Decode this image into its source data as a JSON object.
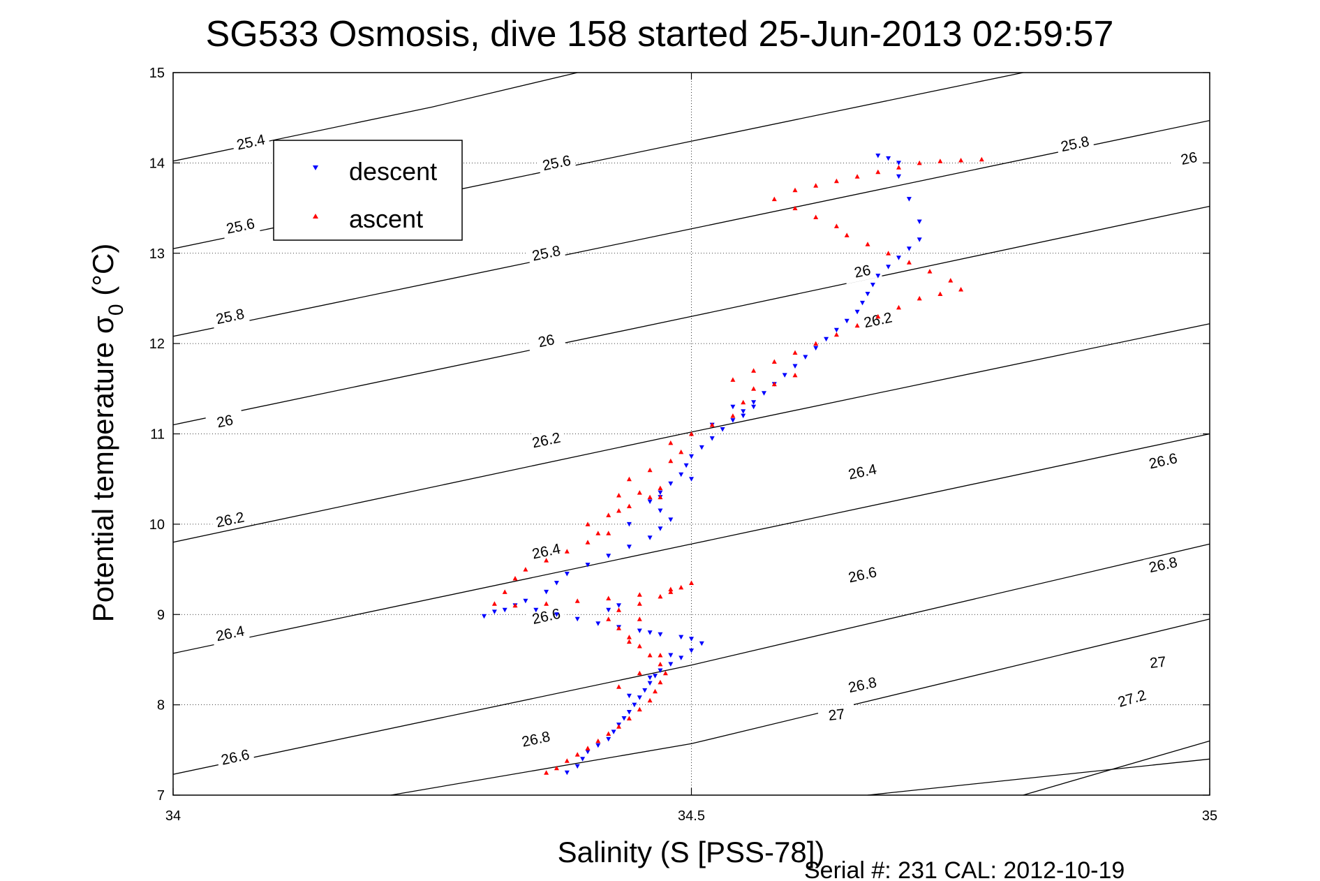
{
  "chart_data": {
    "type": "scatter",
    "title": "SG533 Osmosis, dive 158 started 25-Jun-2013 02:59:57",
    "xlabel": "Salinity (S [PSS-78])",
    "ylabel_main": "Potential temperature σ",
    "ylabel_sub": "0",
    "ylabel_unit": " (°C)",
    "xlim": [
      34,
      35
    ],
    "ylim": [
      7,
      15
    ],
    "x_ticks": [
      34,
      34.5,
      35
    ],
    "x_tick_labels": [
      "34",
      "34.5",
      "35"
    ],
    "y_ticks": [
      7,
      8,
      9,
      10,
      11,
      12,
      13,
      14,
      15
    ],
    "y_tick_labels": [
      "7",
      "8",
      "9",
      "10",
      "11",
      "12",
      "13",
      "14",
      "15"
    ],
    "grid": true,
    "legend_position": "top-left",
    "footer": "Serial #: 231  CAL: 2012-10-19",
    "contour_levels": [
      25.4,
      25.6,
      25.8,
      26,
      26.2,
      26.4,
      26.6,
      26.8,
      27,
      27.2
    ],
    "contours": [
      {
        "level": 25.4,
        "label": "25.4",
        "points": [
          [
            34,
            14.02
          ],
          [
            34.25,
            14.62
          ],
          [
            34.39,
            15.0
          ]
        ],
        "label_at": [
          [
            34.075,
            14.23
          ]
        ]
      },
      {
        "level": 25.6,
        "label": "25.6",
        "points": [
          [
            34,
            13.05
          ],
          [
            34.5,
            14.24
          ],
          [
            34.82,
            15.0
          ]
        ],
        "label_at": [
          [
            34.065,
            13.3
          ],
          [
            34.37,
            14.0
          ]
        ]
      },
      {
        "level": 25.8,
        "label": "25.8",
        "points": [
          [
            34,
            12.08
          ],
          [
            34.5,
            13.27
          ],
          [
            35,
            14.47
          ]
        ],
        "label_at": [
          [
            34.055,
            12.3
          ],
          [
            34.36,
            13.0
          ],
          [
            34.87,
            14.21
          ]
        ]
      },
      {
        "level": 26,
        "label": "26",
        "points": [
          [
            34,
            11.1
          ],
          [
            34.5,
            12.3
          ],
          [
            35,
            13.52
          ]
        ],
        "label_at": [
          [
            34.05,
            11.14
          ],
          [
            34.36,
            12.03
          ],
          [
            34.665,
            12.8
          ],
          [
            34.98,
            14.05
          ]
        ]
      },
      {
        "level": 26.2,
        "label": "26.2",
        "points": [
          [
            34,
            9.8
          ],
          [
            34.5,
            11.02
          ],
          [
            35,
            12.22
          ]
        ],
        "label_at": [
          [
            34.055,
            10.05
          ],
          [
            34.36,
            10.93
          ],
          [
            34.68,
            12.26
          ]
        ]
      },
      {
        "level": 26.4,
        "label": "26.4",
        "points": [
          [
            34,
            8.57
          ],
          [
            34.5,
            9.78
          ],
          [
            35,
            11.0
          ]
        ],
        "label_at": [
          [
            34.055,
            8.79
          ],
          [
            34.36,
            9.7
          ],
          [
            34.665,
            10.58
          ]
        ]
      },
      {
        "level": 26.6,
        "label": "26.6",
        "points": [
          [
            34,
            7.23
          ],
          [
            34.5,
            8.44
          ],
          [
            35,
            9.78
          ]
        ],
        "label_at": [
          [
            34.06,
            7.42
          ],
          [
            34.36,
            8.98
          ],
          [
            34.665,
            9.44
          ],
          [
            34.955,
            10.7
          ]
        ]
      },
      {
        "level": 26.8,
        "label": "26.8",
        "points": [
          [
            34.21,
            7.0
          ],
          [
            34.5,
            7.57
          ],
          [
            35,
            8.95
          ]
        ],
        "label_at": [
          [
            34.35,
            7.62
          ],
          [
            34.665,
            8.22
          ],
          [
            34.955,
            9.55
          ]
        ]
      },
      {
        "level": 27,
        "label": "27",
        "points": [
          [
            34.67,
            7.0
          ],
          [
            35,
            7.4
          ]
        ],
        "label_at": [
          [
            34.64,
            7.89
          ],
          [
            34.95,
            8.47
          ]
        ]
      },
      {
        "level": 27.2,
        "label": "27.2",
        "points": [
          [
            34.82,
            7.0
          ],
          [
            35,
            7.6
          ]
        ],
        "label_at": [
          [
            34.925,
            8.07
          ]
        ]
      }
    ],
    "series": [
      {
        "name": "descent",
        "color": "#0000ff",
        "marker": "triangle-down",
        "points": [
          [
            34.38,
            7.25
          ],
          [
            34.39,
            7.32
          ],
          [
            34.395,
            7.4
          ],
          [
            34.4,
            7.48
          ],
          [
            34.41,
            7.55
          ],
          [
            34.42,
            7.62
          ],
          [
            34.425,
            7.7
          ],
          [
            34.43,
            7.78
          ],
          [
            34.435,
            7.85
          ],
          [
            34.44,
            7.92
          ],
          [
            34.445,
            8.0
          ],
          [
            34.45,
            8.08
          ],
          [
            34.455,
            8.16
          ],
          [
            34.46,
            8.24
          ],
          [
            34.465,
            8.32
          ],
          [
            34.47,
            8.38
          ],
          [
            34.48,
            8.45
          ],
          [
            34.49,
            8.52
          ],
          [
            34.5,
            8.6
          ],
          [
            34.51,
            8.68
          ],
          [
            34.5,
            8.73
          ],
          [
            34.49,
            8.75
          ],
          [
            34.47,
            8.78
          ],
          [
            34.45,
            8.82
          ],
          [
            34.43,
            8.86
          ],
          [
            34.41,
            8.9
          ],
          [
            34.39,
            8.95
          ],
          [
            34.37,
            9.0
          ],
          [
            34.35,
            9.05
          ],
          [
            34.33,
            9.1
          ],
          [
            34.31,
            9.03
          ],
          [
            34.3,
            8.98
          ],
          [
            34.32,
            9.05
          ],
          [
            34.34,
            9.15
          ],
          [
            34.36,
            9.25
          ],
          [
            34.37,
            9.35
          ],
          [
            34.38,
            9.45
          ],
          [
            34.4,
            9.55
          ],
          [
            34.42,
            9.65
          ],
          [
            34.44,
            9.75
          ],
          [
            34.46,
            9.85
          ],
          [
            34.47,
            9.95
          ],
          [
            34.48,
            10.05
          ],
          [
            34.47,
            10.15
          ],
          [
            34.46,
            10.25
          ],
          [
            34.47,
            10.35
          ],
          [
            34.48,
            10.45
          ],
          [
            34.49,
            10.55
          ],
          [
            34.495,
            10.65
          ],
          [
            34.5,
            10.75
          ],
          [
            34.51,
            10.85
          ],
          [
            34.52,
            10.95
          ],
          [
            34.53,
            11.05
          ],
          [
            34.54,
            11.15
          ],
          [
            34.55,
            11.25
          ],
          [
            34.56,
            11.35
          ],
          [
            34.57,
            11.45
          ],
          [
            34.58,
            11.55
          ],
          [
            34.59,
            11.65
          ],
          [
            34.6,
            11.75
          ],
          [
            34.61,
            11.85
          ],
          [
            34.62,
            11.95
          ],
          [
            34.63,
            12.05
          ],
          [
            34.64,
            12.15
          ],
          [
            34.65,
            12.25
          ],
          [
            34.66,
            12.35
          ],
          [
            34.665,
            12.45
          ],
          [
            34.67,
            12.55
          ],
          [
            34.675,
            12.65
          ],
          [
            34.68,
            12.75
          ],
          [
            34.69,
            12.85
          ],
          [
            34.7,
            12.95
          ],
          [
            34.71,
            13.05
          ],
          [
            34.72,
            13.15
          ],
          [
            34.72,
            13.35
          ],
          [
            34.71,
            13.6
          ],
          [
            34.7,
            13.85
          ],
          [
            34.7,
            14.0
          ],
          [
            34.69,
            14.05
          ],
          [
            34.68,
            14.08
          ],
          [
            34.56,
            11.3
          ],
          [
            34.55,
            11.2
          ],
          [
            34.54,
            11.3
          ],
          [
            34.52,
            11.1
          ],
          [
            34.5,
            10.5
          ],
          [
            34.47,
            10.3
          ],
          [
            34.44,
            10.0
          ],
          [
            34.43,
            9.1
          ],
          [
            34.42,
            9.05
          ],
          [
            34.46,
            8.8
          ],
          [
            34.48,
            8.55
          ],
          [
            34.46,
            8.3
          ],
          [
            34.44,
            8.1
          ]
        ]
      },
      {
        "name": "ascent",
        "color": "#ff0000",
        "marker": "triangle-up",
        "points": [
          [
            34.36,
            7.25
          ],
          [
            34.37,
            7.3
          ],
          [
            34.38,
            7.38
          ],
          [
            34.39,
            7.45
          ],
          [
            34.4,
            7.52
          ],
          [
            34.41,
            7.6
          ],
          [
            34.42,
            7.68
          ],
          [
            34.43,
            7.76
          ],
          [
            34.44,
            7.85
          ],
          [
            34.45,
            7.95
          ],
          [
            34.46,
            8.05
          ],
          [
            34.465,
            8.15
          ],
          [
            34.47,
            8.25
          ],
          [
            34.475,
            8.35
          ],
          [
            34.47,
            8.45
          ],
          [
            34.46,
            8.55
          ],
          [
            34.45,
            8.65
          ],
          [
            34.44,
            8.75
          ],
          [
            34.43,
            8.85
          ],
          [
            34.42,
            8.95
          ],
          [
            34.43,
            9.05
          ],
          [
            34.45,
            9.12
          ],
          [
            34.47,
            9.2
          ],
          [
            34.49,
            9.3
          ],
          [
            34.5,
            9.35
          ],
          [
            34.48,
            9.28
          ],
          [
            34.45,
            9.22
          ],
          [
            34.42,
            9.18
          ],
          [
            34.39,
            9.15
          ],
          [
            34.36,
            9.12
          ],
          [
            34.33,
            9.1
          ],
          [
            34.31,
            9.12
          ],
          [
            34.32,
            9.25
          ],
          [
            34.33,
            9.4
          ],
          [
            34.34,
            9.5
          ],
          [
            34.36,
            9.6
          ],
          [
            34.38,
            9.7
          ],
          [
            34.4,
            9.8
          ],
          [
            34.41,
            9.9
          ],
          [
            34.4,
            10.0
          ],
          [
            34.42,
            10.1
          ],
          [
            34.44,
            10.2
          ],
          [
            34.46,
            10.3
          ],
          [
            34.47,
            10.4
          ],
          [
            34.45,
            10.35
          ],
          [
            34.43,
            10.32
          ],
          [
            34.44,
            10.5
          ],
          [
            34.46,
            10.6
          ],
          [
            34.48,
            10.7
          ],
          [
            34.49,
            10.8
          ],
          [
            34.48,
            10.9
          ],
          [
            34.5,
            11.0
          ],
          [
            34.52,
            11.1
          ],
          [
            34.54,
            11.2
          ],
          [
            34.55,
            11.35
          ],
          [
            34.56,
            11.5
          ],
          [
            34.54,
            11.6
          ],
          [
            34.56,
            11.7
          ],
          [
            34.58,
            11.8
          ],
          [
            34.6,
            11.9
          ],
          [
            34.62,
            12.0
          ],
          [
            34.64,
            12.1
          ],
          [
            34.66,
            12.2
          ],
          [
            34.68,
            12.3
          ],
          [
            34.7,
            12.4
          ],
          [
            34.72,
            12.5
          ],
          [
            34.74,
            12.55
          ],
          [
            34.76,
            12.6
          ],
          [
            34.75,
            12.7
          ],
          [
            34.73,
            12.8
          ],
          [
            34.71,
            12.9
          ],
          [
            34.69,
            13.0
          ],
          [
            34.67,
            13.1
          ],
          [
            34.65,
            13.2
          ],
          [
            34.64,
            13.3
          ],
          [
            34.62,
            13.4
          ],
          [
            34.6,
            13.5
          ],
          [
            34.58,
            13.6
          ],
          [
            34.6,
            13.7
          ],
          [
            34.62,
            13.75
          ],
          [
            34.64,
            13.8
          ],
          [
            34.66,
            13.85
          ],
          [
            34.68,
            13.9
          ],
          [
            34.7,
            13.95
          ],
          [
            34.72,
            14.0
          ],
          [
            34.74,
            14.02
          ],
          [
            34.76,
            14.03
          ],
          [
            34.78,
            14.04
          ],
          [
            34.6,
            11.65
          ],
          [
            34.58,
            11.55
          ],
          [
            34.47,
            10.3
          ],
          [
            34.43,
            10.15
          ],
          [
            34.42,
            9.9
          ],
          [
            34.48,
            9.25
          ],
          [
            34.45,
            8.95
          ],
          [
            34.44,
            8.7
          ],
          [
            34.47,
            8.55
          ],
          [
            34.45,
            8.35
          ],
          [
            34.43,
            8.2
          ]
        ]
      }
    ]
  }
}
